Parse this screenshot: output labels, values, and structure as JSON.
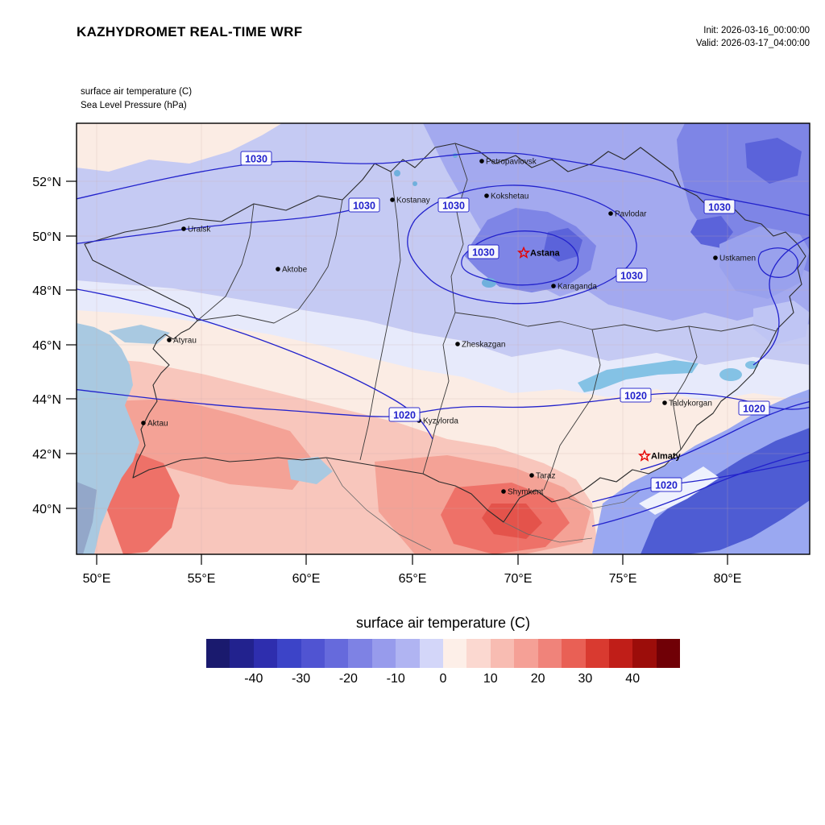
{
  "header": {
    "title": "KAZHYDROMET REAL-TIME WRF",
    "init_label": "Init: 2026-03-16_00:00:00",
    "valid_label": "Valid: 2026-03-17_04:00:00"
  },
  "map": {
    "field_labels": [
      "surface air temperature   (C)",
      "Sea Level Pressure   (hPa)"
    ],
    "y_ticks": [
      "52°N",
      "50°N",
      "48°N",
      "46°N",
      "44°N",
      "42°N",
      "40°N"
    ],
    "x_ticks": [
      "50°E",
      "55°E",
      "60°E",
      "65°E",
      "70°E",
      "75°E",
      "80°E"
    ],
    "cities": [
      {
        "name": "Petropavlovsk"
      },
      {
        "name": "Kostanay"
      },
      {
        "name": "Kokshetau"
      },
      {
        "name": "Pavlodar"
      },
      {
        "name": "Uralsk"
      },
      {
        "name": "Ustkamen"
      },
      {
        "name": "Aktobe"
      },
      {
        "name": "Karaganda"
      },
      {
        "name": "Atyrau"
      },
      {
        "name": "Zheskazgan"
      },
      {
        "name": "Taldykorgan"
      },
      {
        "name": "Aktau"
      },
      {
        "name": "Kyzylorda"
      },
      {
        "name": "Taraz"
      },
      {
        "name": "Shymkent"
      }
    ],
    "capitals": [
      {
        "name": "Astana"
      },
      {
        "name": "Almaty"
      }
    ],
    "isobar_labels": [
      {
        "text": "1030"
      },
      {
        "text": "1030"
      },
      {
        "text": "1030"
      },
      {
        "text": "1030"
      },
      {
        "text": "1030"
      },
      {
        "text": "1030"
      },
      {
        "text": "1020"
      },
      {
        "text": "1020"
      },
      {
        "text": "1020"
      },
      {
        "text": "1020"
      }
    ]
  },
  "legend": {
    "title": "surface air temperature  (C)",
    "ticks": [
      "-40",
      "-30",
      "-20",
      "-10",
      "0",
      "10",
      "20",
      "30",
      "40"
    ],
    "colors": [
      "#1a1a6e",
      "#22228e",
      "#2e2eae",
      "#3c44c8",
      "#5054d2",
      "#666adc",
      "#7e82e4",
      "#979bec",
      "#b0b4f2",
      "#d3d6f9",
      "#fdefe8",
      "#fbd8d0",
      "#f8bcb2",
      "#f5a096",
      "#f0837a",
      "#e96055",
      "#d93a30",
      "#c01e18",
      "#9c0d0a",
      "#700006"
    ]
  },
  "colors": {
    "isobar_line": "#2222cc",
    "region_border": "#2a2a2a",
    "capital_star": "#e60000",
    "water": "#a9c9e1"
  }
}
